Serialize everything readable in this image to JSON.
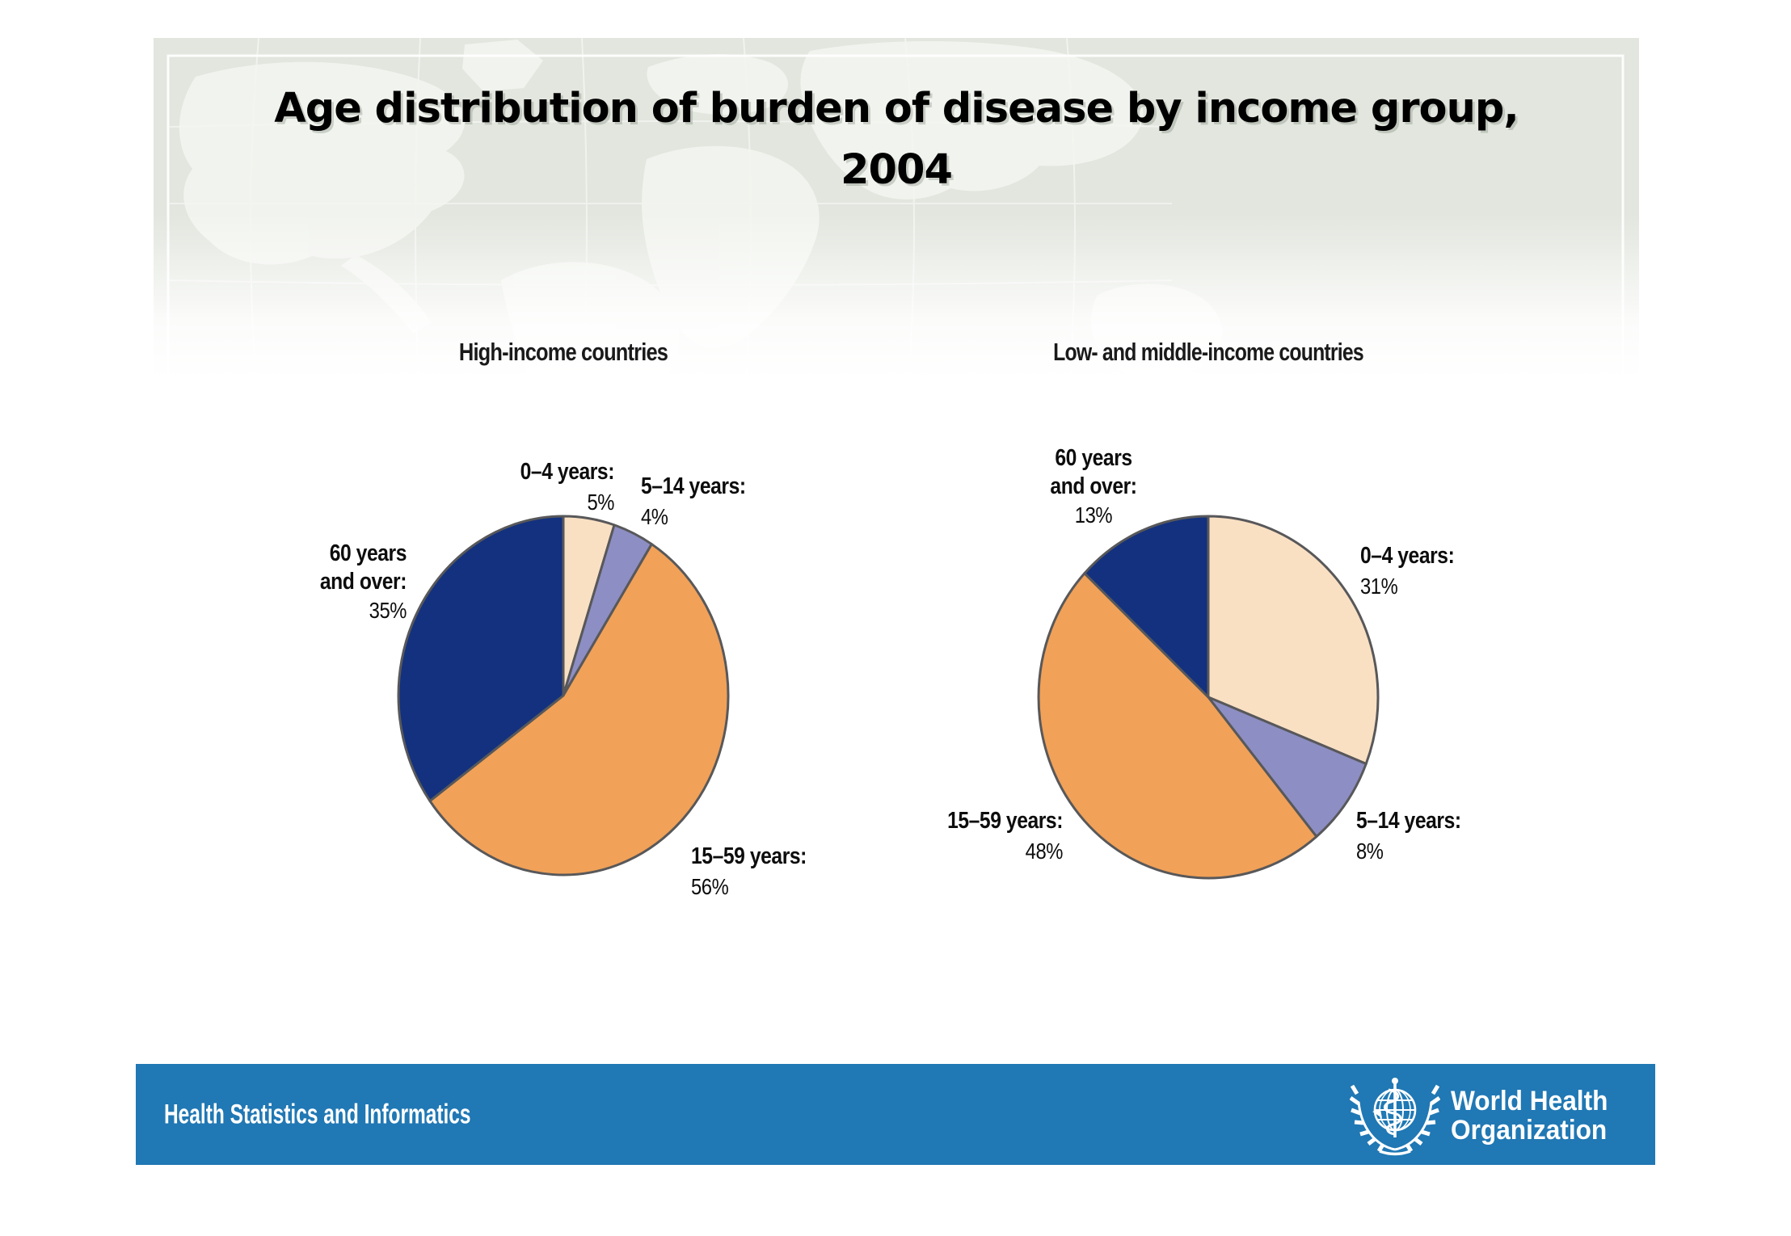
{
  "slide": {
    "title": "Age distribution of burden of disease by income group, 2004",
    "background": {
      "map_tint": "#E2E6DE",
      "frame_color": "#FFFFFF"
    },
    "footer": {
      "department": "Health Statistics and Informatics",
      "who_line1": "World Health",
      "who_line2": "Organization",
      "bar_color": "#2078B4"
    }
  },
  "chart_data": [
    {
      "type": "pie",
      "title": "High-income countries",
      "categories": [
        "0–4 years",
        "5–14 years",
        "15–59 years",
        "60 years and over"
      ],
      "values": [
        5,
        4,
        56,
        35
      ],
      "unit": "%",
      "colors": [
        "#FAE0C3",
        "#8D8EC3",
        "#F1A158",
        "#13317E"
      ],
      "stroke": "#58585A",
      "start_angle_deg": 0,
      "direction": "clockwise",
      "legend": "labels around slices"
    },
    {
      "type": "pie",
      "title": "Low- and middle-income countries",
      "categories": [
        "0–4 years",
        "5–14 years",
        "15–59 years",
        "60 years and over"
      ],
      "values": [
        31,
        8,
        48,
        13
      ],
      "unit": "%",
      "colors": [
        "#FAE0C3",
        "#8D8EC3",
        "#F1A158",
        "#13317E"
      ],
      "stroke": "#58585A",
      "start_angle_deg": 0,
      "direction": "clockwise",
      "legend": "labels around slices"
    }
  ]
}
